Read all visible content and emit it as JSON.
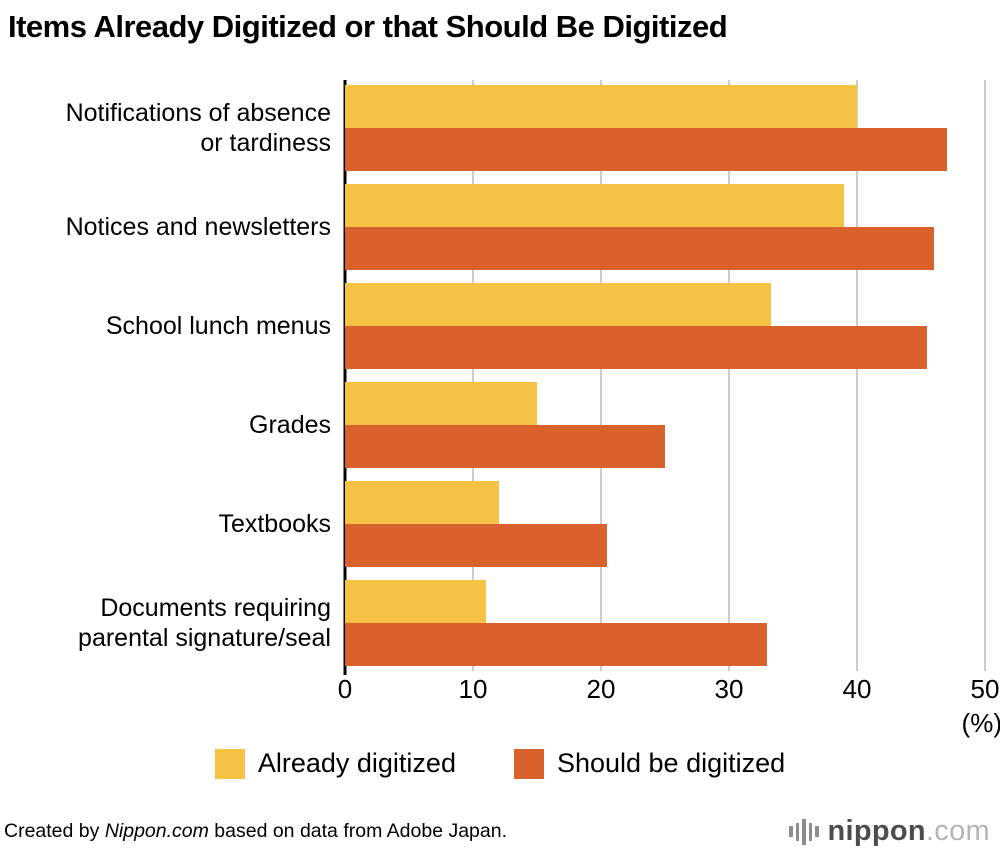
{
  "title": "Items Already Digitized or that Should Be Digitized",
  "chart_data": {
    "type": "bar",
    "orientation": "horizontal",
    "title": "Items Already Digitized or that Should Be Digitized",
    "categories": [
      "Notifications of absence\nor tardiness",
      "Notices and newsletters",
      "School lunch menus",
      "Grades",
      "Textbooks",
      "Documents requiring\nparental signature/seal"
    ],
    "series": [
      {
        "name": "Already digitized",
        "color": "#F5C243",
        "values": [
          40.0,
          39.0,
          33.3,
          15.0,
          12.0,
          11.0
        ]
      },
      {
        "name": "Should be digitized",
        "color": "#D8612C",
        "values": [
          47.0,
          46.0,
          45.5,
          25.0,
          20.5,
          33.0
        ]
      }
    ],
    "xlim": [
      0,
      50
    ],
    "xticks": [
      0,
      10,
      20,
      30,
      40,
      50
    ],
    "x_unit_label": "(%)",
    "xlabel": "",
    "ylabel": "",
    "grid": true,
    "gridline_color": "#cccccc",
    "axis_line_color": "#000000",
    "legend_position": "bottom"
  },
  "footer": {
    "credit_prefix": "Created by ",
    "credit_source": "Nippon.com",
    "credit_suffix": " based on data from Adobe Japan.",
    "logo_text_main": "nippon",
    "logo_text_suffix": ".com"
  }
}
